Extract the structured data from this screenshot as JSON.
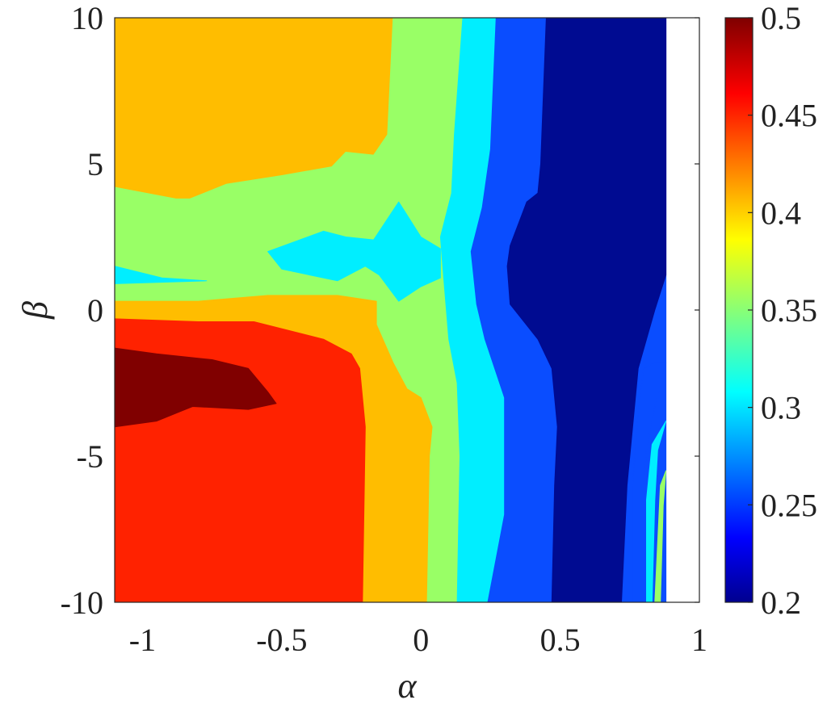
{
  "chart_data": {
    "type": "heatmap",
    "style": "filled-contour",
    "title": "",
    "xlabel": "α",
    "ylabel": "β",
    "xlim": [
      -1.1,
      1
    ],
    "ylim": [
      -10,
      10
    ],
    "x_ticks": [
      -1,
      -0.5,
      0,
      0.5,
      1
    ],
    "x_tick_labels": [
      "-1",
      "-0.5",
      "0",
      "0.5",
      "1"
    ],
    "y_ticks": [
      -10,
      -5,
      0,
      5,
      10
    ],
    "y_tick_labels": [
      "-10",
      "-5",
      "0",
      "5",
      "10"
    ],
    "x_data_max": 0.88,
    "colorbar": {
      "range": [
        0.2,
        0.5
      ],
      "ticks": [
        0.2,
        0.25,
        0.3,
        0.35,
        0.4,
        0.45,
        0.5
      ],
      "tick_labels": [
        "0.2",
        "0.25",
        "0.3",
        "0.35",
        "0.4",
        "0.45",
        "0.5"
      ],
      "colormap": "jet",
      "location": "right"
    },
    "levels": [
      {
        "min": 0.2,
        "max": 0.225,
        "color": "#000b91"
      },
      {
        "min": 0.225,
        "max": 0.275,
        "color": "#0a4dff"
      },
      {
        "min": 0.275,
        "max": 0.325,
        "color": "#00eeff"
      },
      {
        "min": 0.325,
        "max": 0.375,
        "color": "#99ff66"
      },
      {
        "min": 0.375,
        "max": 0.425,
        "color": "#ffbd00"
      },
      {
        "min": 0.425,
        "max": 0.475,
        "color": "#ff2200"
      },
      {
        "min": 0.475,
        "max": 0.5,
        "color": "#800000"
      }
    ],
    "regions": [
      {
        "level": 4,
        "polygon": [
          [
            -1.1,
            10
          ],
          [
            -0.1,
            10
          ],
          [
            -0.12,
            6
          ],
          [
            -0.17,
            5.3
          ],
          [
            -0.27,
            5.4
          ],
          [
            -0.32,
            4.9
          ],
          [
            -0.5,
            4.6
          ],
          [
            -0.7,
            4.3
          ],
          [
            -0.83,
            3.8
          ],
          [
            -0.88,
            3.8
          ],
          [
            -1.1,
            4.2
          ]
        ]
      },
      {
        "level": 3,
        "polygon": [
          [
            -1.1,
            4.2
          ],
          [
            -0.88,
            3.8
          ],
          [
            -0.83,
            3.8
          ],
          [
            -0.7,
            4.3
          ],
          [
            -0.5,
            4.6
          ],
          [
            -0.32,
            4.9
          ],
          [
            -0.27,
            5.4
          ],
          [
            -0.17,
            5.3
          ],
          [
            -0.12,
            6
          ],
          [
            -0.1,
            10
          ],
          [
            0.15,
            10
          ],
          [
            0.12,
            6
          ],
          [
            0.11,
            4
          ],
          [
            0.07,
            2.5
          ],
          [
            0.08,
            1.3
          ],
          [
            0.1,
            -1
          ],
          [
            0.13,
            -2.5
          ],
          [
            0.14,
            -5
          ],
          [
            0.13,
            -10
          ],
          [
            0.02,
            -10
          ],
          [
            0.03,
            -5
          ],
          [
            0.04,
            -4
          ],
          [
            0.0,
            -3
          ],
          [
            -0.05,
            -2.7
          ],
          [
            -0.1,
            -1.8
          ],
          [
            -0.16,
            -0.5
          ],
          [
            -0.16,
            0.3
          ],
          [
            -0.3,
            0.5
          ],
          [
            -0.55,
            0.5
          ],
          [
            -0.8,
            0.3
          ],
          [
            -1.1,
            0.3
          ]
        ]
      },
      {
        "level": 2,
        "polygon": [
          [
            0.15,
            10
          ],
          [
            0.27,
            10
          ],
          [
            0.25,
            5.5
          ],
          [
            0.22,
            3.5
          ],
          [
            0.18,
            2
          ],
          [
            0.2,
            0.2
          ],
          [
            0.23,
            -1
          ],
          [
            0.3,
            -3
          ],
          [
            0.3,
            -7
          ],
          [
            0.24,
            -10
          ],
          [
            0.13,
            -10
          ],
          [
            0.14,
            -5
          ],
          [
            0.13,
            -2.5
          ],
          [
            0.1,
            -1
          ],
          [
            0.08,
            1.3
          ],
          [
            0.07,
            2.5
          ],
          [
            0.11,
            4
          ],
          [
            0.12,
            6
          ]
        ]
      },
      {
        "level": 2,
        "polygon": [
          [
            -0.55,
            2
          ],
          [
            -0.35,
            2.7
          ],
          [
            -0.27,
            2.5
          ],
          [
            -0.17,
            2.4
          ],
          [
            -0.08,
            3.7
          ],
          [
            0.0,
            2.5
          ],
          [
            0.07,
            2.1
          ],
          [
            0.07,
            1.1
          ],
          [
            0.0,
            0.8
          ],
          [
            -0.08,
            0.3
          ],
          [
            -0.15,
            1.2
          ],
          [
            -0.2,
            1.5
          ],
          [
            -0.3,
            1.0
          ],
          [
            -0.5,
            1.4
          ]
        ]
      },
      {
        "level": 2,
        "polygon": [
          [
            -1.1,
            1.5
          ],
          [
            -0.93,
            1.1
          ],
          [
            -0.77,
            1.0
          ],
          [
            -1.1,
            0.9
          ]
        ]
      },
      {
        "level": 1,
        "polygon": [
          [
            0.27,
            10
          ],
          [
            0.88,
            10
          ],
          [
            0.88,
            -10
          ],
          [
            0.24,
            -10
          ],
          [
            0.3,
            -7
          ],
          [
            0.3,
            -3
          ],
          [
            0.23,
            -1
          ],
          [
            0.2,
            0.2
          ],
          [
            0.18,
            2
          ],
          [
            0.22,
            3.5
          ],
          [
            0.25,
            5.5
          ]
        ]
      },
      {
        "level": 0,
        "polygon": [
          [
            0.45,
            10
          ],
          [
            0.8,
            10
          ],
          [
            0.88,
            10
          ],
          [
            0.88,
            1.2
          ],
          [
            0.84,
            0
          ],
          [
            0.78,
            -2
          ],
          [
            0.76,
            -4
          ],
          [
            0.74,
            -6
          ],
          [
            0.72,
            -10
          ],
          [
            0.47,
            -10
          ],
          [
            0.48,
            -6
          ],
          [
            0.49,
            -4
          ],
          [
            0.47,
            -2
          ],
          [
            0.42,
            -1
          ],
          [
            0.32,
            0.2
          ],
          [
            0.31,
            1.5
          ],
          [
            0.32,
            2.2
          ],
          [
            0.38,
            3.7
          ],
          [
            0.42,
            4
          ],
          [
            0.43,
            5
          ]
        ]
      },
      {
        "level": 1,
        "polygon": [
          [
            0.88,
            -1.8
          ],
          [
            0.84,
            -3.3
          ],
          [
            0.81,
            -4.8
          ],
          [
            0.8,
            -6
          ],
          [
            0.8,
            -10
          ],
          [
            0.76,
            -10
          ],
          [
            0.76,
            -6
          ],
          [
            0.78,
            -3.5
          ],
          [
            0.8,
            -2
          ],
          [
            0.84,
            -1.8
          ]
        ]
      },
      {
        "level": 2,
        "polygon": [
          [
            0.88,
            -3.8
          ],
          [
            0.85,
            -4.8
          ],
          [
            0.84,
            -6.5
          ],
          [
            0.83,
            -10
          ],
          [
            0.81,
            -10
          ],
          [
            0.81,
            -6.5
          ],
          [
            0.83,
            -4.6
          ]
        ]
      },
      {
        "level": 3,
        "polygon": [
          [
            0.88,
            -5.5
          ],
          [
            0.87,
            -6.7
          ],
          [
            0.86,
            -10
          ],
          [
            0.84,
            -10
          ],
          [
            0.86,
            -6
          ]
        ]
      },
      {
        "level": 4,
        "polygon": [
          [
            -1.1,
            0.3
          ],
          [
            -0.8,
            0.3
          ],
          [
            -0.55,
            0.5
          ],
          [
            -0.3,
            0.5
          ],
          [
            -0.16,
            0.3
          ],
          [
            -0.16,
            -0.5
          ],
          [
            -0.1,
            -1.8
          ],
          [
            -0.05,
            -2.7
          ],
          [
            0.0,
            -3
          ],
          [
            0.04,
            -4
          ],
          [
            0.03,
            -5
          ],
          [
            0.02,
            -10
          ],
          [
            -0.21,
            -10
          ],
          [
            -0.2,
            -4
          ],
          [
            -0.22,
            -2
          ],
          [
            -0.25,
            -1.5
          ],
          [
            -0.35,
            -1
          ],
          [
            -0.6,
            -0.4
          ],
          [
            -0.8,
            -0.4
          ],
          [
            -1.1,
            -0.3
          ]
        ]
      },
      {
        "level": 5,
        "polygon": [
          [
            -1.1,
            -0.3
          ],
          [
            -0.8,
            -0.4
          ],
          [
            -0.6,
            -0.4
          ],
          [
            -0.35,
            -1
          ],
          [
            -0.25,
            -1.5
          ],
          [
            -0.22,
            -2
          ],
          [
            -0.2,
            -4
          ],
          [
            -0.21,
            -10
          ],
          [
            -1.1,
            -10
          ]
        ]
      },
      {
        "level": 6,
        "polygon": [
          [
            -1.1,
            -1.3
          ],
          [
            -0.95,
            -1.5
          ],
          [
            -0.75,
            -1.7
          ],
          [
            -0.62,
            -2
          ],
          [
            -0.55,
            -2.8
          ],
          [
            -0.52,
            -3.2
          ],
          [
            -0.62,
            -3.4
          ],
          [
            -0.82,
            -3.3
          ],
          [
            -0.95,
            -3.8
          ],
          [
            -1.1,
            -4.0
          ]
        ]
      }
    ]
  }
}
